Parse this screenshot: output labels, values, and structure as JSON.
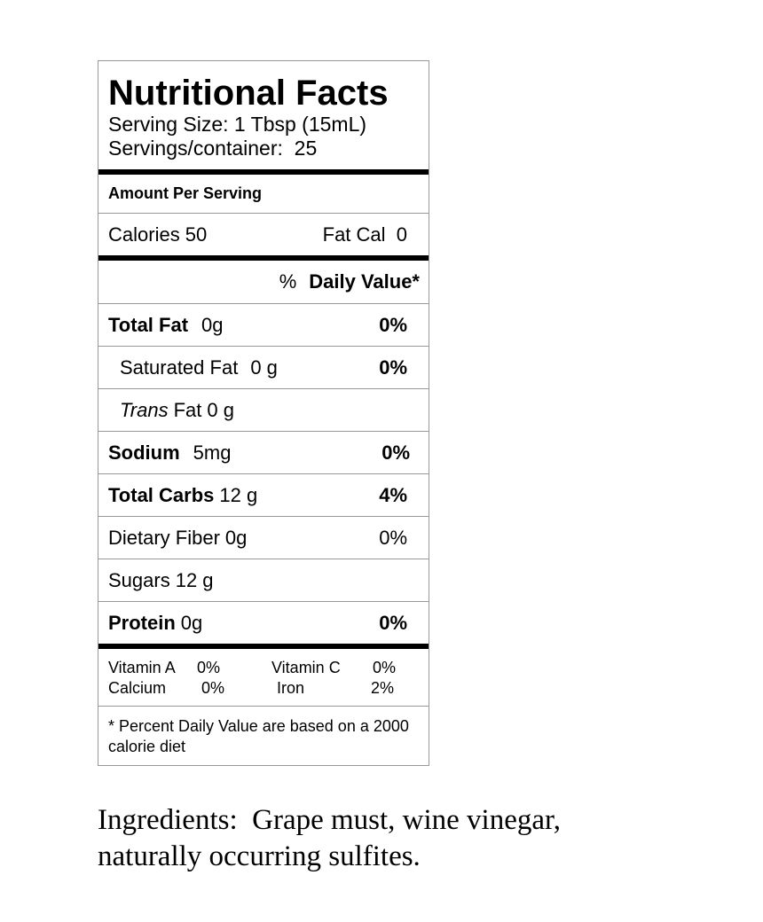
{
  "header": {
    "title": "Nutritional Facts",
    "serving_size": "Serving Size: 1 Tbsp (15mL)",
    "servings": "Servings/container:  25"
  },
  "amount_per_serving": "Amount Per Serving",
  "calories": {
    "calories": "Calories 50",
    "fat_cal": "Fat Cal  0"
  },
  "daily_value_header": {
    "percent": "%",
    "label": "Daily Value*"
  },
  "nutrients": [
    {
      "name": "Total Fat",
      "amount": "0g",
      "dv": "0%"
    },
    {
      "name": "Saturated Fat",
      "amount": "0 g",
      "dv": "0%"
    },
    {
      "name_italic": "Trans",
      "name": "Fat",
      "amount": "0 g"
    },
    {
      "name": "Sodium",
      "amount": "5mg",
      "dv": "0%"
    },
    {
      "name": "Total Carbs",
      "amount": "12 g",
      "dv": "4%"
    },
    {
      "name": "Dietary Fiber",
      "amount": "0g",
      "dv": "0%"
    },
    {
      "name": "Sugars",
      "amount": "12 g"
    },
    {
      "name": "Protein",
      "amount": "0g",
      "dv": "0%"
    }
  ],
  "vitamins": [
    [
      {
        "name": "Vitamin A",
        "dv": "0%"
      },
      {
        "name": "Vitamin C",
        "dv": "0%"
      }
    ],
    [
      {
        "name": "Calcium",
        "dv": "0%"
      },
      {
        "name": "Iron",
        "dv": "2%"
      }
    ]
  ],
  "footnote": "* Percent Daily Value are based on a 2000 calorie diet",
  "ingredients": "Ingredients:  Grape must, wine vinegar, naturally occurring sulfites."
}
